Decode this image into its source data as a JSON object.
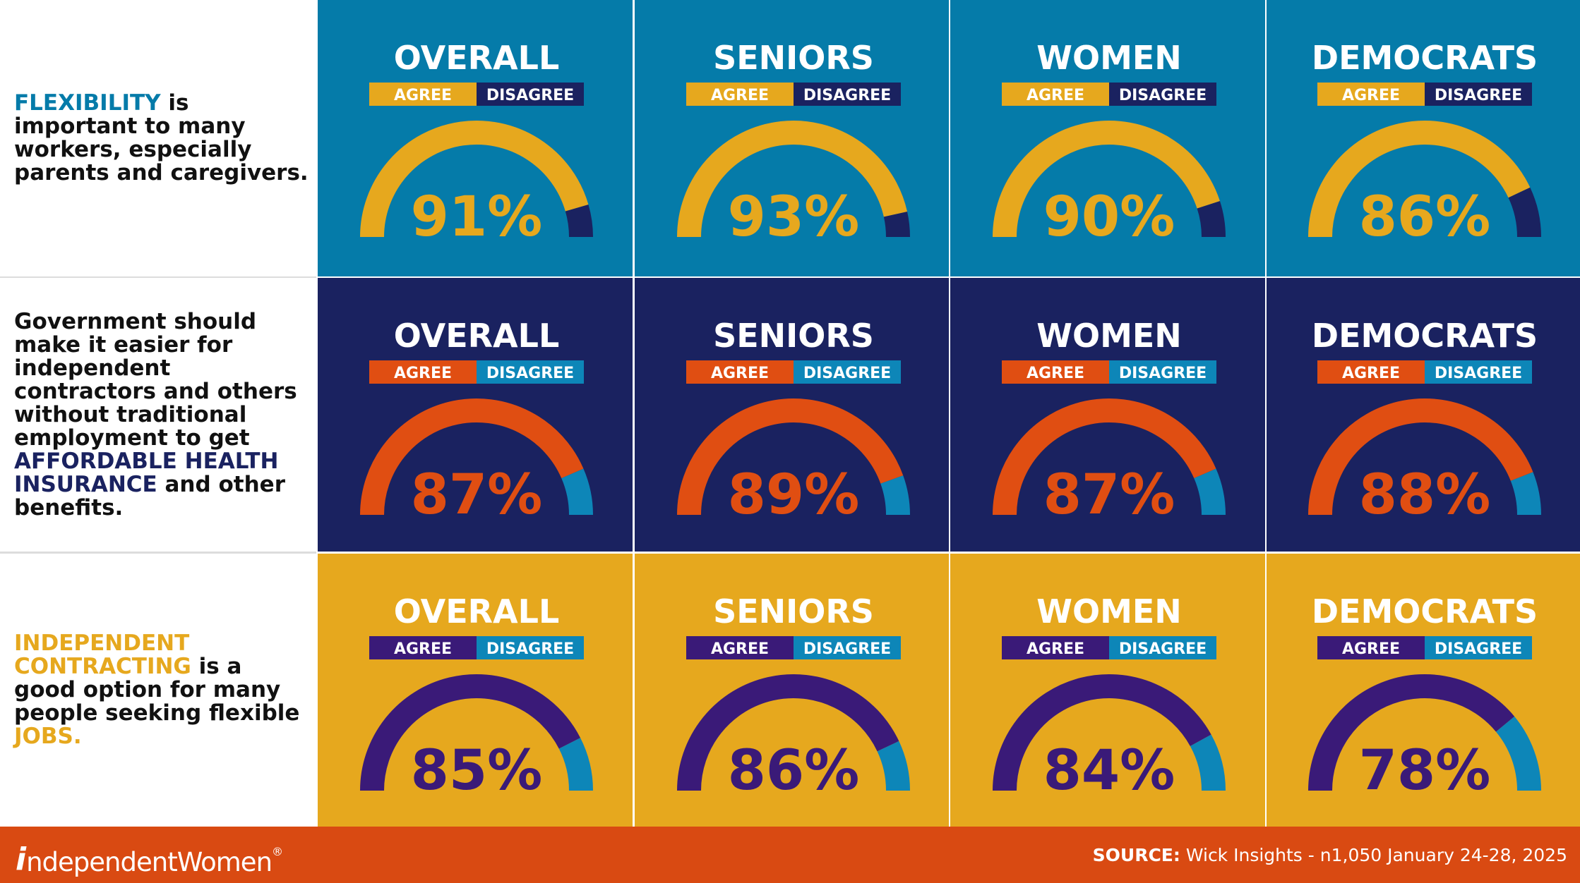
{
  "rows": [
    {
      "theme": {
        "bg": "#057ba9",
        "agree": "#e6a81e",
        "disagree": "#1a2260",
        "label": "#ffffff",
        "value": "#e6a81e"
      },
      "statement": [
        {
          "text": "FLEXIBILITY",
          "color": "#057ba9"
        },
        {
          "text": " is important to many workers, especially parents and caregivers.",
          "color": "#111111"
        }
      ],
      "panels": [
        {
          "title": "OVERALL",
          "agree": 91,
          "agree_label": "AGREE",
          "disagree_label": "DISAGREE",
          "value_text": "91%"
        },
        {
          "title": "SENIORS",
          "agree": 93,
          "agree_label": "AGREE",
          "disagree_label": "DISAGREE",
          "value_text": "93%"
        },
        {
          "title": "WOMEN",
          "agree": 90,
          "agree_label": "AGREE",
          "disagree_label": "DISAGREE",
          "value_text": "90%"
        },
        {
          "title": "DEMOCRATS",
          "agree": 86,
          "agree_label": "AGREE",
          "disagree_label": "DISAGREE",
          "value_text": "86%"
        }
      ]
    },
    {
      "theme": {
        "bg": "#1a2260",
        "agree": "#e04e12",
        "disagree": "#0d86b8",
        "label": "#ffffff",
        "value": "#e04e12"
      },
      "statement": [
        {
          "text": "Government should make it easier for independent contractors and others without traditional employment to get ",
          "color": "#111111"
        },
        {
          "text": "AFFORDABLE HEALTH INSURANCE",
          "color": "#1a2260"
        },
        {
          "text": " and other benefits.",
          "color": "#111111"
        }
      ],
      "panels": [
        {
          "title": "OVERALL",
          "agree": 87,
          "agree_label": "AGREE",
          "disagree_label": "DISAGREE",
          "value_text": "87%"
        },
        {
          "title": "SENIORS",
          "agree": 89,
          "agree_label": "AGREE",
          "disagree_label": "DISAGREE",
          "value_text": "89%"
        },
        {
          "title": "WOMEN",
          "agree": 87,
          "agree_label": "AGREE",
          "disagree_label": "DISAGREE",
          "value_text": "87%"
        },
        {
          "title": "DEMOCRATS",
          "agree": 88,
          "agree_label": "AGREE",
          "disagree_label": "DISAGREE",
          "value_text": "88%"
        }
      ]
    },
    {
      "theme": {
        "bg": "#e6a81e",
        "agree": "#3a1a78",
        "disagree": "#0d86b8",
        "label": "#ffffff",
        "value": "#3a1a78"
      },
      "statement": [
        {
          "text": "INDEPENDENT CONTRACTING",
          "color": "#e6a81e"
        },
        {
          "text": " is a good option for many people seeking flexible ",
          "color": "#111111"
        },
        {
          "text": "JOBS.",
          "color": "#e6a81e"
        }
      ],
      "panels": [
        {
          "title": "OVERALL",
          "agree": 85,
          "agree_label": "AGREE",
          "disagree_label": "DISAGREE",
          "value_text": "85%"
        },
        {
          "title": "SENIORS",
          "agree": 86,
          "agree_label": "AGREE",
          "disagree_label": "DISAGREE",
          "value_text": "86%"
        },
        {
          "title": "WOMEN",
          "agree": 84,
          "agree_label": "AGREE",
          "disagree_label": "DISAGREE",
          "value_text": "84%"
        },
        {
          "title": "DEMOCRATS",
          "agree": 78,
          "agree_label": "AGREE",
          "disagree_label": "DISAGREE",
          "value_text": "78%"
        }
      ]
    }
  ],
  "footer": {
    "logo_mark": "i",
    "logo_text_1": "ndependent",
    "logo_text_2": "Women",
    "logo_reg": "®",
    "source_label": "SOURCE:",
    "source_text": " Wick Insights - n1,050 January 24-28, 2025",
    "bg": "#d94a12"
  },
  "chart_data": {
    "type": "gauge",
    "categories": [
      "OVERALL",
      "SENIORS",
      "WOMEN",
      "DEMOCRATS"
    ],
    "series": [
      {
        "name": "FLEXIBILITY is important to many workers, especially parents and caregivers.",
        "values": [
          91,
          93,
          90,
          86
        ]
      },
      {
        "name": "Government should make it easier for independent contractors and others without traditional employment to get AFFORDABLE HEALTH INSURANCE and other benefits.",
        "values": [
          87,
          89,
          87,
          88
        ]
      },
      {
        "name": "INDEPENDENT CONTRACTING is a good option for many people seeking flexible JOBS.",
        "values": [
          85,
          86,
          84,
          78
        ]
      }
    ],
    "legend": [
      "AGREE",
      "DISAGREE"
    ],
    "ylim": [
      0,
      100
    ]
  }
}
